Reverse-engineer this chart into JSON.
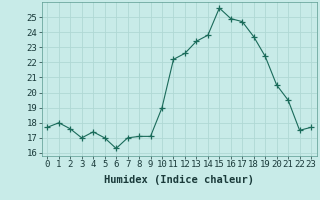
{
  "x": [
    0,
    1,
    2,
    3,
    4,
    5,
    6,
    7,
    8,
    9,
    10,
    11,
    12,
    13,
    14,
    15,
    16,
    17,
    18,
    19,
    20,
    21,
    22,
    23
  ],
  "y": [
    17.7,
    18.0,
    17.6,
    17.0,
    17.4,
    17.0,
    16.3,
    17.0,
    17.1,
    17.1,
    19.0,
    22.2,
    22.6,
    23.4,
    23.8,
    25.6,
    24.9,
    24.7,
    23.7,
    22.4,
    20.5,
    19.5,
    17.5,
    17.7
  ],
  "line_color": "#1a6b5a",
  "marker": "+",
  "marker_size": 4,
  "bg_color": "#c8ebe8",
  "grid_color": "#b0d8d4",
  "xlabel": "Humidex (Indice chaleur)",
  "ylabel_ticks": [
    16,
    17,
    18,
    19,
    20,
    21,
    22,
    23,
    24,
    25
  ],
  "xlim": [
    -0.5,
    23.5
  ],
  "ylim": [
    15.8,
    26.0
  ],
  "tick_fontsize": 6.5,
  "xlabel_fontsize": 7.5
}
